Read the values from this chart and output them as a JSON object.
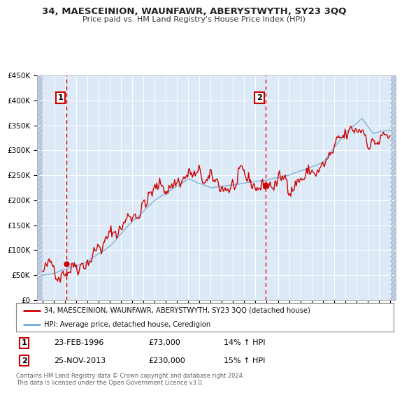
{
  "title": "34, MAESCEINION, WAUNFAWR, ABERYSTWYTH, SY23 3QQ",
  "subtitle": "Price paid vs. HM Land Registry's House Price Index (HPI)",
  "legend_label_red": "34, MAESCEINION, WAUNFAWR, ABERYSTWYTH, SY23 3QQ (detached house)",
  "legend_label_blue": "HPI: Average price, detached house, Ceredigion",
  "footnote": "Contains HM Land Registry data © Crown copyright and database right 2024.\nThis data is licensed under the Open Government Licence v3.0.",
  "sale1_date": "23-FEB-1996",
  "sale1_price": "£73,000",
  "sale1_hpi": "14% ↑ HPI",
  "sale2_date": "25-NOV-2013",
  "sale2_price": "£230,000",
  "sale2_hpi": "15% ↑ HPI",
  "sale1_x": 1996.15,
  "sale1_y": 73000,
  "sale2_x": 2013.9,
  "sale2_y": 230000,
  "ylim": [
    0,
    450000
  ],
  "xlim": [
    1993.5,
    2025.5
  ],
  "bg_color": "#dce9f7",
  "hatch_color": "#c0d0e8",
  "grid_color": "#ffffff",
  "red_color": "#cc0000",
  "blue_color": "#7aaad4"
}
